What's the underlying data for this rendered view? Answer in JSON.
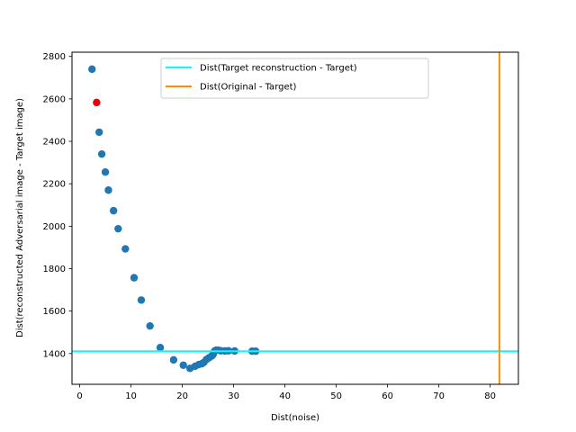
{
  "chart_data": {
    "type": "scatter",
    "xlabel": "Dist(noise)",
    "ylabel": "Dist(reconstructed Adversarial image - Target image)",
    "xlim": [
      -1.5,
      85.5
    ],
    "ylim": [
      1255,
      2820
    ],
    "xticks": [
      0,
      10,
      20,
      30,
      40,
      50,
      60,
      70,
      80
    ],
    "yticks": [
      1400,
      1600,
      1800,
      2000,
      2200,
      2400,
      2600,
      2800
    ],
    "grid": false,
    "legend_position": "upper-center",
    "series": [
      {
        "color": "#1f77b4",
        "x": [
          2.4,
          3.8,
          4.3,
          5.0,
          5.6,
          6.6,
          7.5,
          8.9,
          10.6,
          12.0,
          13.7,
          15.7,
          18.3,
          20.2,
          21.5,
          22.5,
          23.2,
          23.8,
          24.2,
          24.7,
          25.2,
          25.7,
          26.0,
          26.3,
          26.6,
          27.0,
          27.5,
          28.3,
          29.0,
          30.2,
          33.6,
          34.3
        ],
        "y": [
          2740,
          2443,
          2340,
          2255,
          2170,
          2073,
          1988,
          1893,
          1757,
          1652,
          1530,
          1428,
          1370,
          1345,
          1330,
          1340,
          1348,
          1352,
          1358,
          1372,
          1380,
          1388,
          1395,
          1412,
          1416,
          1416,
          1413,
          1412,
          1413,
          1412,
          1411,
          1411
        ]
      },
      {
        "color": "#e8000b",
        "x": [
          3.3
        ],
        "y": [
          2583
        ]
      }
    ],
    "reference_lines": [
      {
        "name": "Dist(Target reconstruction - Target)",
        "orientation": "horizontal",
        "value": 1411,
        "color": "#00ffff"
      },
      {
        "name": "Dist(Original - Target)",
        "orientation": "vertical",
        "value": 81.8,
        "color": "#ff8c00"
      }
    ]
  }
}
